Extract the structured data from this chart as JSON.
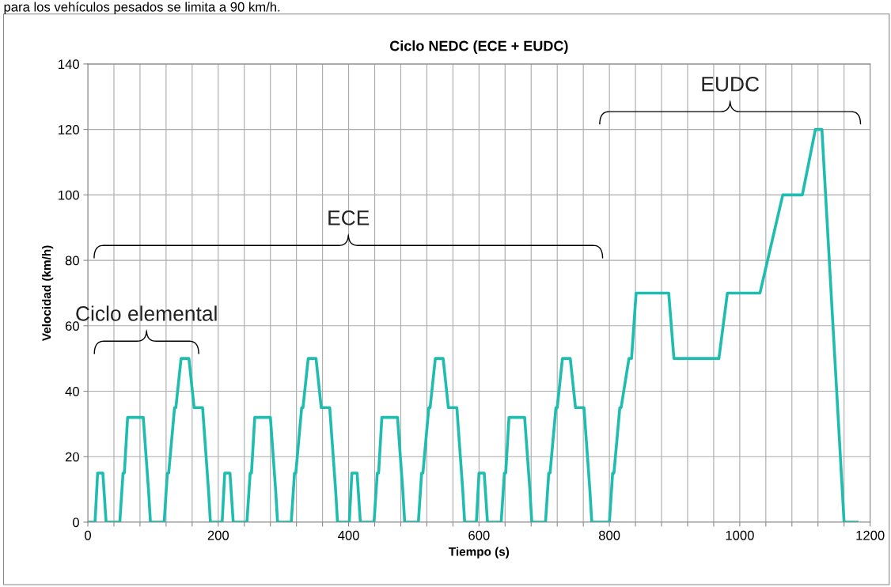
{
  "chart_data": {
    "type": "line",
    "title": "Ciclo NEDC (ECE + EUDC)",
    "xlabel": "Tiempo (s)",
    "ylabel": "Velocidad (km/h)",
    "x": [
      0,
      11,
      15,
      23,
      28,
      49,
      54,
      56,
      61,
      85,
      93,
      96,
      117,
      122,
      124,
      133,
      135,
      143,
      155,
      163,
      176,
      185,
      188,
      195,
      206,
      210,
      218,
      223,
      244,
      249,
      251,
      256,
      280,
      288,
      291,
      312,
      317,
      319,
      328,
      330,
      338,
      350,
      358,
      371,
      380,
      383,
      390,
      401,
      405,
      413,
      418,
      439,
      444,
      446,
      451,
      475,
      483,
      486,
      507,
      512,
      514,
      523,
      525,
      533,
      545,
      553,
      566,
      575,
      578,
      585,
      596,
      600,
      608,
      613,
      634,
      639,
      641,
      646,
      670,
      678,
      681,
      702,
      707,
      709,
      718,
      720,
      728,
      740,
      748,
      761,
      770,
      773,
      780,
      800,
      805,
      807,
      816,
      818,
      830,
      834,
      841,
      891,
      899,
      968,
      981,
      1031,
      1066,
      1096,
      1116,
      1126,
      1160,
      1180
    ],
    "series": [
      {
        "color": "#1fbcb0",
        "values": [
          0,
          0,
          15,
          15,
          0,
          0,
          15,
          15,
          32,
          32,
          10,
          0,
          0,
          15,
          15,
          35,
          35,
          50,
          50,
          35,
          35,
          10,
          0,
          0,
          0,
          15,
          15,
          0,
          0,
          15,
          15,
          32,
          32,
          10,
          0,
          0,
          15,
          15,
          35,
          35,
          50,
          50,
          35,
          35,
          10,
          0,
          0,
          0,
          15,
          15,
          0,
          0,
          15,
          15,
          32,
          32,
          10,
          0,
          0,
          15,
          15,
          35,
          35,
          50,
          50,
          35,
          35,
          10,
          0,
          0,
          0,
          15,
          15,
          0,
          0,
          15,
          15,
          32,
          32,
          10,
          0,
          0,
          15,
          15,
          35,
          35,
          50,
          50,
          35,
          35,
          10,
          0,
          0,
          0,
          15,
          15,
          35,
          35,
          50,
          50,
          70,
          70,
          50,
          50,
          70,
          70,
          100,
          100,
          120,
          120,
          0,
          0
        ]
      }
    ],
    "xlim": [
      0,
      1200
    ],
    "xticks": [
      0,
      {
        "value": 40,
        "label": null
      },
      {
        "value": 80,
        "label": null
      },
      {
        "value": 120,
        "label": null
      },
      {
        "value": 160,
        "label": null
      },
      200,
      {
        "value": 240,
        "label": null
      },
      {
        "value": 280,
        "label": null
      },
      {
        "value": 320,
        "label": null
      },
      {
        "value": 360,
        "label": null
      },
      400,
      {
        "value": 440,
        "label": null
      },
      {
        "value": 480,
        "label": null
      },
      {
        "value": 520,
        "label": null
      },
      {
        "value": 560,
        "label": null
      },
      600,
      {
        "value": 640,
        "label": null
      },
      {
        "value": 680,
        "label": null
      },
      {
        "value": 720,
        "label": null
      },
      {
        "value": 760,
        "label": null
      },
      800,
      {
        "value": 840,
        "label": null
      },
      {
        "value": 880,
        "label": null
      },
      {
        "value": 920,
        "label": null
      },
      {
        "value": 960,
        "label": null
      },
      1000,
      {
        "value": 1040,
        "label": null
      },
      {
        "value": 1080,
        "label": null
      },
      {
        "value": 1120,
        "label": null
      },
      {
        "value": 1160,
        "label": null
      },
      1200
    ],
    "ylim": [
      0,
      140
    ],
    "yticks": [
      0,
      20,
      40,
      60,
      80,
      100,
      120,
      140
    ],
    "grid": true,
    "legend": false,
    "marker": "none",
    "line_style": "solid",
    "annotations": [
      "para los vehículos pesados se limita a 90 km/h.",
      "Ciclo elemental",
      "ECE",
      "EUDC"
    ]
  }
}
